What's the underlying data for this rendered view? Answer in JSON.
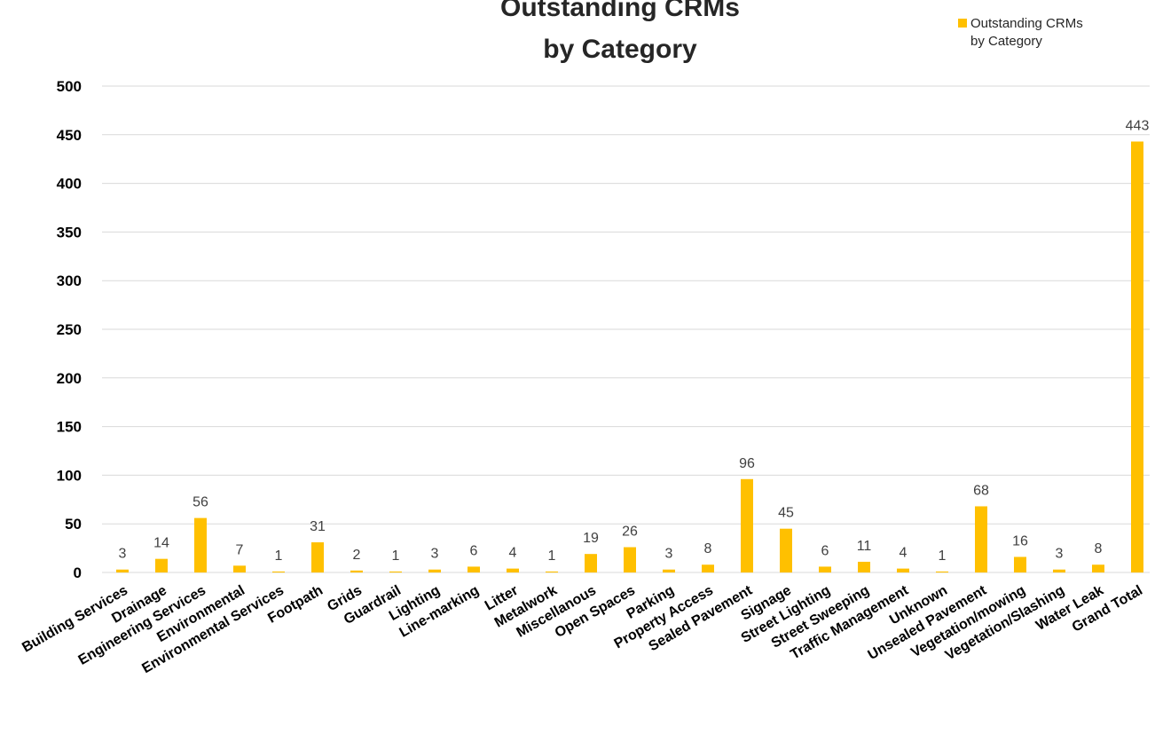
{
  "chart_data": {
    "type": "bar",
    "title_lines": [
      "Outstanding  CRMs",
      "by Category"
    ],
    "legend_lines": [
      "Outstanding CRMs",
      "by Category"
    ],
    "legend_position": "top-right",
    "xlabel": "",
    "ylabel": "",
    "ylim": [
      0,
      500
    ],
    "yticks": [
      0,
      50,
      100,
      150,
      200,
      250,
      300,
      350,
      400,
      450,
      500
    ],
    "grid": true,
    "bar_color": "#FFC000",
    "categories": [
      "Building Services",
      "Drainage",
      "Engineering Services",
      "Environmental",
      "Environmental Services",
      "Footpath",
      "Grids",
      "Guardrail",
      "Lighting",
      "Line-marking",
      "Litter",
      "Metalwork",
      "Miscellanous",
      "Open Spaces",
      "Parking",
      "Property Access",
      "Sealed Pavement",
      "Signage",
      "Street Lighting",
      "Street Sweeping",
      "Traffic Management",
      "Unknown",
      "Unsealed Pavement",
      "Vegetation/mowing",
      "Vegetation/Slashing",
      "Water Leak",
      "Grand Total"
    ],
    "series": [
      {
        "name": "Outstanding CRMs by Category",
        "values": [
          3,
          14,
          56,
          7,
          1,
          31,
          2,
          1,
          3,
          6,
          4,
          1,
          19,
          26,
          3,
          8,
          96,
          45,
          6,
          11,
          4,
          1,
          68,
          16,
          3,
          8,
          443
        ]
      }
    ]
  }
}
